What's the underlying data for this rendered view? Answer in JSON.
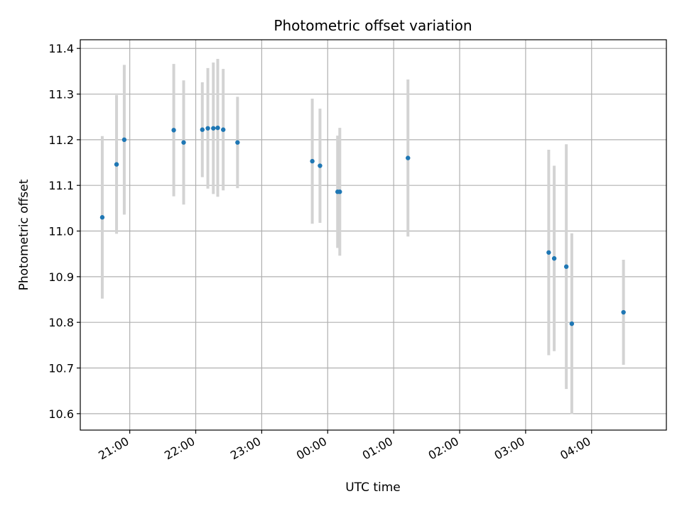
{
  "chart_data": {
    "type": "scatter",
    "title": "Photometric offset variation",
    "xlabel": "UTC time",
    "ylabel": "Photometric offset",
    "x_ticks": [
      "21:00",
      "22:00",
      "23:00",
      "00:00",
      "01:00",
      "02:00",
      "03:00",
      "04:00"
    ],
    "y_ticks": [
      "10.6",
      "10.7",
      "10.8",
      "10.9",
      "11.0",
      "11.1",
      "11.2",
      "11.3",
      "11.4"
    ],
    "grid": true,
    "colors": {
      "marker": "#1f77b4",
      "errorbar": "#d3d3d3",
      "grid": "#b0b0b0"
    },
    "x_range": [
      "20:15",
      "05:08"
    ],
    "ylim": [
      10.564,
      11.419
    ],
    "series": [
      {
        "points": [
          {
            "x": "20:35",
            "y": 11.03,
            "err": 0.178
          },
          {
            "x": "20:48",
            "y": 11.146,
            "err": 0.152
          },
          {
            "x": "20:55",
            "y": 11.2,
            "err": 0.164
          },
          {
            "x": "21:40",
            "y": 11.221,
            "err": 0.145
          },
          {
            "x": "21:49",
            "y": 11.194,
            "err": 0.136
          },
          {
            "x": "22:06",
            "y": 11.222,
            "err": 0.104
          },
          {
            "x": "22:11",
            "y": 11.225,
            "err": 0.132
          },
          {
            "x": "22:16",
            "y": 11.225,
            "err": 0.144
          },
          {
            "x": "22:20",
            "y": 11.226,
            "err": 0.151
          },
          {
            "x": "22:25",
            "y": 11.222,
            "err": 0.133
          },
          {
            "x": "22:38",
            "y": 11.194,
            "err": 0.1
          },
          {
            "x": "23:46",
            "y": 11.153,
            "err": 0.137
          },
          {
            "x": "23:53",
            "y": 11.143,
            "err": 0.125
          },
          {
            "x": "00:09",
            "y": 11.086,
            "err": 0.123
          },
          {
            "x": "00:11",
            "y": 11.086,
            "err": 0.14
          },
          {
            "x": "01:13",
            "y": 11.16,
            "err": 0.172
          },
          {
            "x": "03:21",
            "y": 10.953,
            "err": 0.225
          },
          {
            "x": "03:26",
            "y": 10.94,
            "err": 0.203
          },
          {
            "x": "03:37",
            "y": 10.922,
            "err": 0.268
          },
          {
            "x": "03:42",
            "y": 10.797,
            "err": 0.198
          },
          {
            "x": "04:29",
            "y": 10.822,
            "err": 0.115
          }
        ]
      }
    ]
  }
}
